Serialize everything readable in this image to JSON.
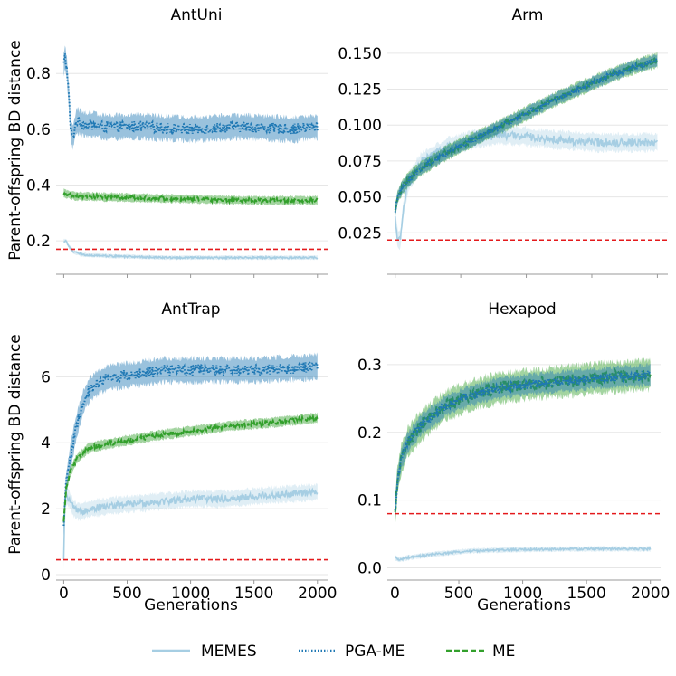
{
  "colors": {
    "MEMES": "#a6cee3",
    "PGA-ME": "#1f78b4",
    "ME": "#33a02c",
    "baseline": "#e41a1c",
    "grid": "#e6e6e6",
    "axis": "#999999"
  },
  "legend": [
    {
      "label": "MEMES",
      "style": "solid"
    },
    {
      "label": "PGA-ME",
      "style": "dotted"
    },
    {
      "label": "ME",
      "style": "dashed"
    }
  ],
  "chart_data": [
    {
      "type": "line",
      "title": "AntUni",
      "xlabel": "",
      "ylabel": "Parent-offspring BD distance",
      "xlim": [
        -60,
        2080
      ],
      "ylim": [
        0.1,
        0.95
      ],
      "xticks": [
        0,
        500,
        1000,
        1500,
        2000
      ],
      "xtick_labels_shown": false,
      "yticks": [
        0.2,
        0.4,
        0.6,
        0.8
      ],
      "ytick_labels": [
        "0.2",
        "0.4",
        "0.6",
        "0.8"
      ],
      "baseline": 0.17,
      "series": [
        {
          "name": "PGA-ME",
          "x": [
            0,
            10,
            25,
            40,
            55,
            70,
            100,
            150,
            300,
            600,
            1000,
            1400,
            1800,
            2000
          ],
          "values": [
            0.83,
            0.86,
            0.82,
            0.72,
            0.6,
            0.57,
            0.63,
            0.62,
            0.61,
            0.61,
            0.6,
            0.61,
            0.6,
            0.61
          ],
          "noise": 0.035
        },
        {
          "name": "ME",
          "x": [
            0,
            100,
            500,
            1000,
            1500,
            2000
          ],
          "values": [
            0.37,
            0.36,
            0.355,
            0.35,
            0.345,
            0.345
          ],
          "noise": 0.012
        },
        {
          "name": "MEMES",
          "x": [
            0,
            20,
            40,
            80,
            150,
            400,
            800,
            1200,
            1600,
            2000
          ],
          "values": [
            0.2,
            0.2,
            0.18,
            0.16,
            0.15,
            0.145,
            0.14,
            0.14,
            0.14,
            0.14
          ],
          "noise": 0.006
        }
      ]
    },
    {
      "type": "line",
      "title": "Arm",
      "xlabel": "",
      "ylabel": "",
      "xlim": [
        -60,
        2080
      ],
      "ylim": [
        0.0,
        0.165
      ],
      "xticks": [
        0,
        500,
        1000,
        1500,
        2000
      ],
      "xtick_labels_shown": false,
      "yticks": [
        0.025,
        0.05,
        0.075,
        0.1,
        0.125,
        0.15
      ],
      "ytick_labels": [
        "0.025",
        "0.050",
        "0.075",
        "0.100",
        "0.125",
        "0.150"
      ],
      "baseline": 0.02,
      "series": [
        {
          "name": "MEMES",
          "x": [
            0,
            20,
            40,
            60,
            100,
            200,
            400,
            600,
            800,
            1000,
            1200,
            1500,
            2000
          ],
          "values": [
            0.035,
            0.02,
            0.02,
            0.04,
            0.06,
            0.075,
            0.085,
            0.09,
            0.093,
            0.092,
            0.09,
            0.088,
            0.088
          ],
          "noise": 0.005
        },
        {
          "name": "ME",
          "x": [
            0,
            20,
            50,
            100,
            200,
            400,
            600,
            800,
            1000,
            1200,
            1400,
            1600,
            1800,
            2000
          ],
          "values": [
            0.04,
            0.05,
            0.056,
            0.062,
            0.07,
            0.081,
            0.09,
            0.099,
            0.108,
            0.117,
            0.125,
            0.133,
            0.14,
            0.145
          ],
          "noise": 0.004
        },
        {
          "name": "PGA-ME",
          "x": [
            0,
            20,
            50,
            100,
            200,
            400,
            600,
            800,
            1000,
            1200,
            1400,
            1600,
            1800,
            2000
          ],
          "values": [
            0.04,
            0.05,
            0.056,
            0.062,
            0.07,
            0.081,
            0.09,
            0.099,
            0.108,
            0.117,
            0.125,
            0.133,
            0.14,
            0.145
          ],
          "noise": 0.0035
        }
      ]
    },
    {
      "type": "line",
      "title": "AntTrap",
      "xlabel": "Generations",
      "ylabel": "Parent-offspring BD distance",
      "xlim": [
        -60,
        2080
      ],
      "ylim": [
        0.0,
        7.6
      ],
      "xticks": [
        0,
        500,
        1000,
        1500,
        2000
      ],
      "xtick_labels_shown": true,
      "xtick_labels": [
        "0",
        "500",
        "1000",
        "1500",
        "2000"
      ],
      "yticks": [
        0,
        2,
        4,
        6
      ],
      "ytick_labels": [
        "0",
        "2",
        "4",
        "6"
      ],
      "baseline": 0.45,
      "series": [
        {
          "name": "MEMES",
          "x": [
            0,
            10,
            40,
            80,
            120,
            200,
            400,
            700,
            1000,
            1300,
            1600,
            2000
          ],
          "values": [
            0.4,
            2.4,
            2.3,
            2.0,
            1.9,
            2.0,
            2.1,
            2.2,
            2.3,
            2.3,
            2.4,
            2.5
          ],
          "noise": 0.2
        },
        {
          "name": "PGA-ME",
          "x": [
            0,
            20,
            50,
            100,
            150,
            200,
            300,
            400,
            600,
            800,
            1000,
            1500,
            2000
          ],
          "values": [
            1.6,
            2.8,
            3.5,
            4.5,
            5.2,
            5.6,
            5.9,
            6.0,
            6.1,
            6.2,
            6.2,
            6.2,
            6.3
          ],
          "noise": 0.3
        },
        {
          "name": "ME",
          "x": [
            0,
            20,
            50,
            100,
            200,
            400,
            700,
            1000,
            1300,
            1600,
            2000
          ],
          "values": [
            1.6,
            2.6,
            3.1,
            3.5,
            3.85,
            4.0,
            4.2,
            4.35,
            4.5,
            4.6,
            4.75
          ],
          "noise": 0.12
        }
      ]
    },
    {
      "type": "line",
      "title": "Hexapod",
      "xlabel": "Generations",
      "ylabel": "",
      "xlim": [
        -60,
        2080
      ],
      "ylim": [
        -0.01,
        0.36
      ],
      "xticks": [
        0,
        500,
        1000,
        1500,
        2000
      ],
      "xtick_labels_shown": true,
      "xtick_labels": [
        "0",
        "500",
        "1000",
        "1500",
        "2000"
      ],
      "yticks": [
        0.0,
        0.1,
        0.2,
        0.3
      ],
      "ytick_labels": [
        "0.0",
        "0.1",
        "0.2",
        "0.3"
      ],
      "baseline": 0.08,
      "series": [
        {
          "name": "MEMES",
          "x": [
            0,
            30,
            100,
            300,
            600,
            1000,
            1500,
            2000
          ],
          "values": [
            0.015,
            0.012,
            0.015,
            0.02,
            0.025,
            0.027,
            0.028,
            0.028
          ],
          "noise": 0.003
        },
        {
          "name": "ME",
          "x": [
            0,
            20,
            50,
            100,
            200,
            400,
            600,
            800,
            1000,
            1300,
            1600,
            2000
          ],
          "values": [
            0.08,
            0.13,
            0.16,
            0.185,
            0.21,
            0.24,
            0.255,
            0.265,
            0.27,
            0.275,
            0.28,
            0.285
          ],
          "noise": 0.018
        },
        {
          "name": "PGA-ME",
          "x": [
            0,
            20,
            50,
            100,
            200,
            400,
            600,
            800,
            1000,
            1300,
            1600,
            2000
          ],
          "values": [
            0.08,
            0.13,
            0.16,
            0.185,
            0.21,
            0.24,
            0.255,
            0.265,
            0.27,
            0.275,
            0.28,
            0.285
          ],
          "noise": 0.012
        }
      ]
    }
  ]
}
